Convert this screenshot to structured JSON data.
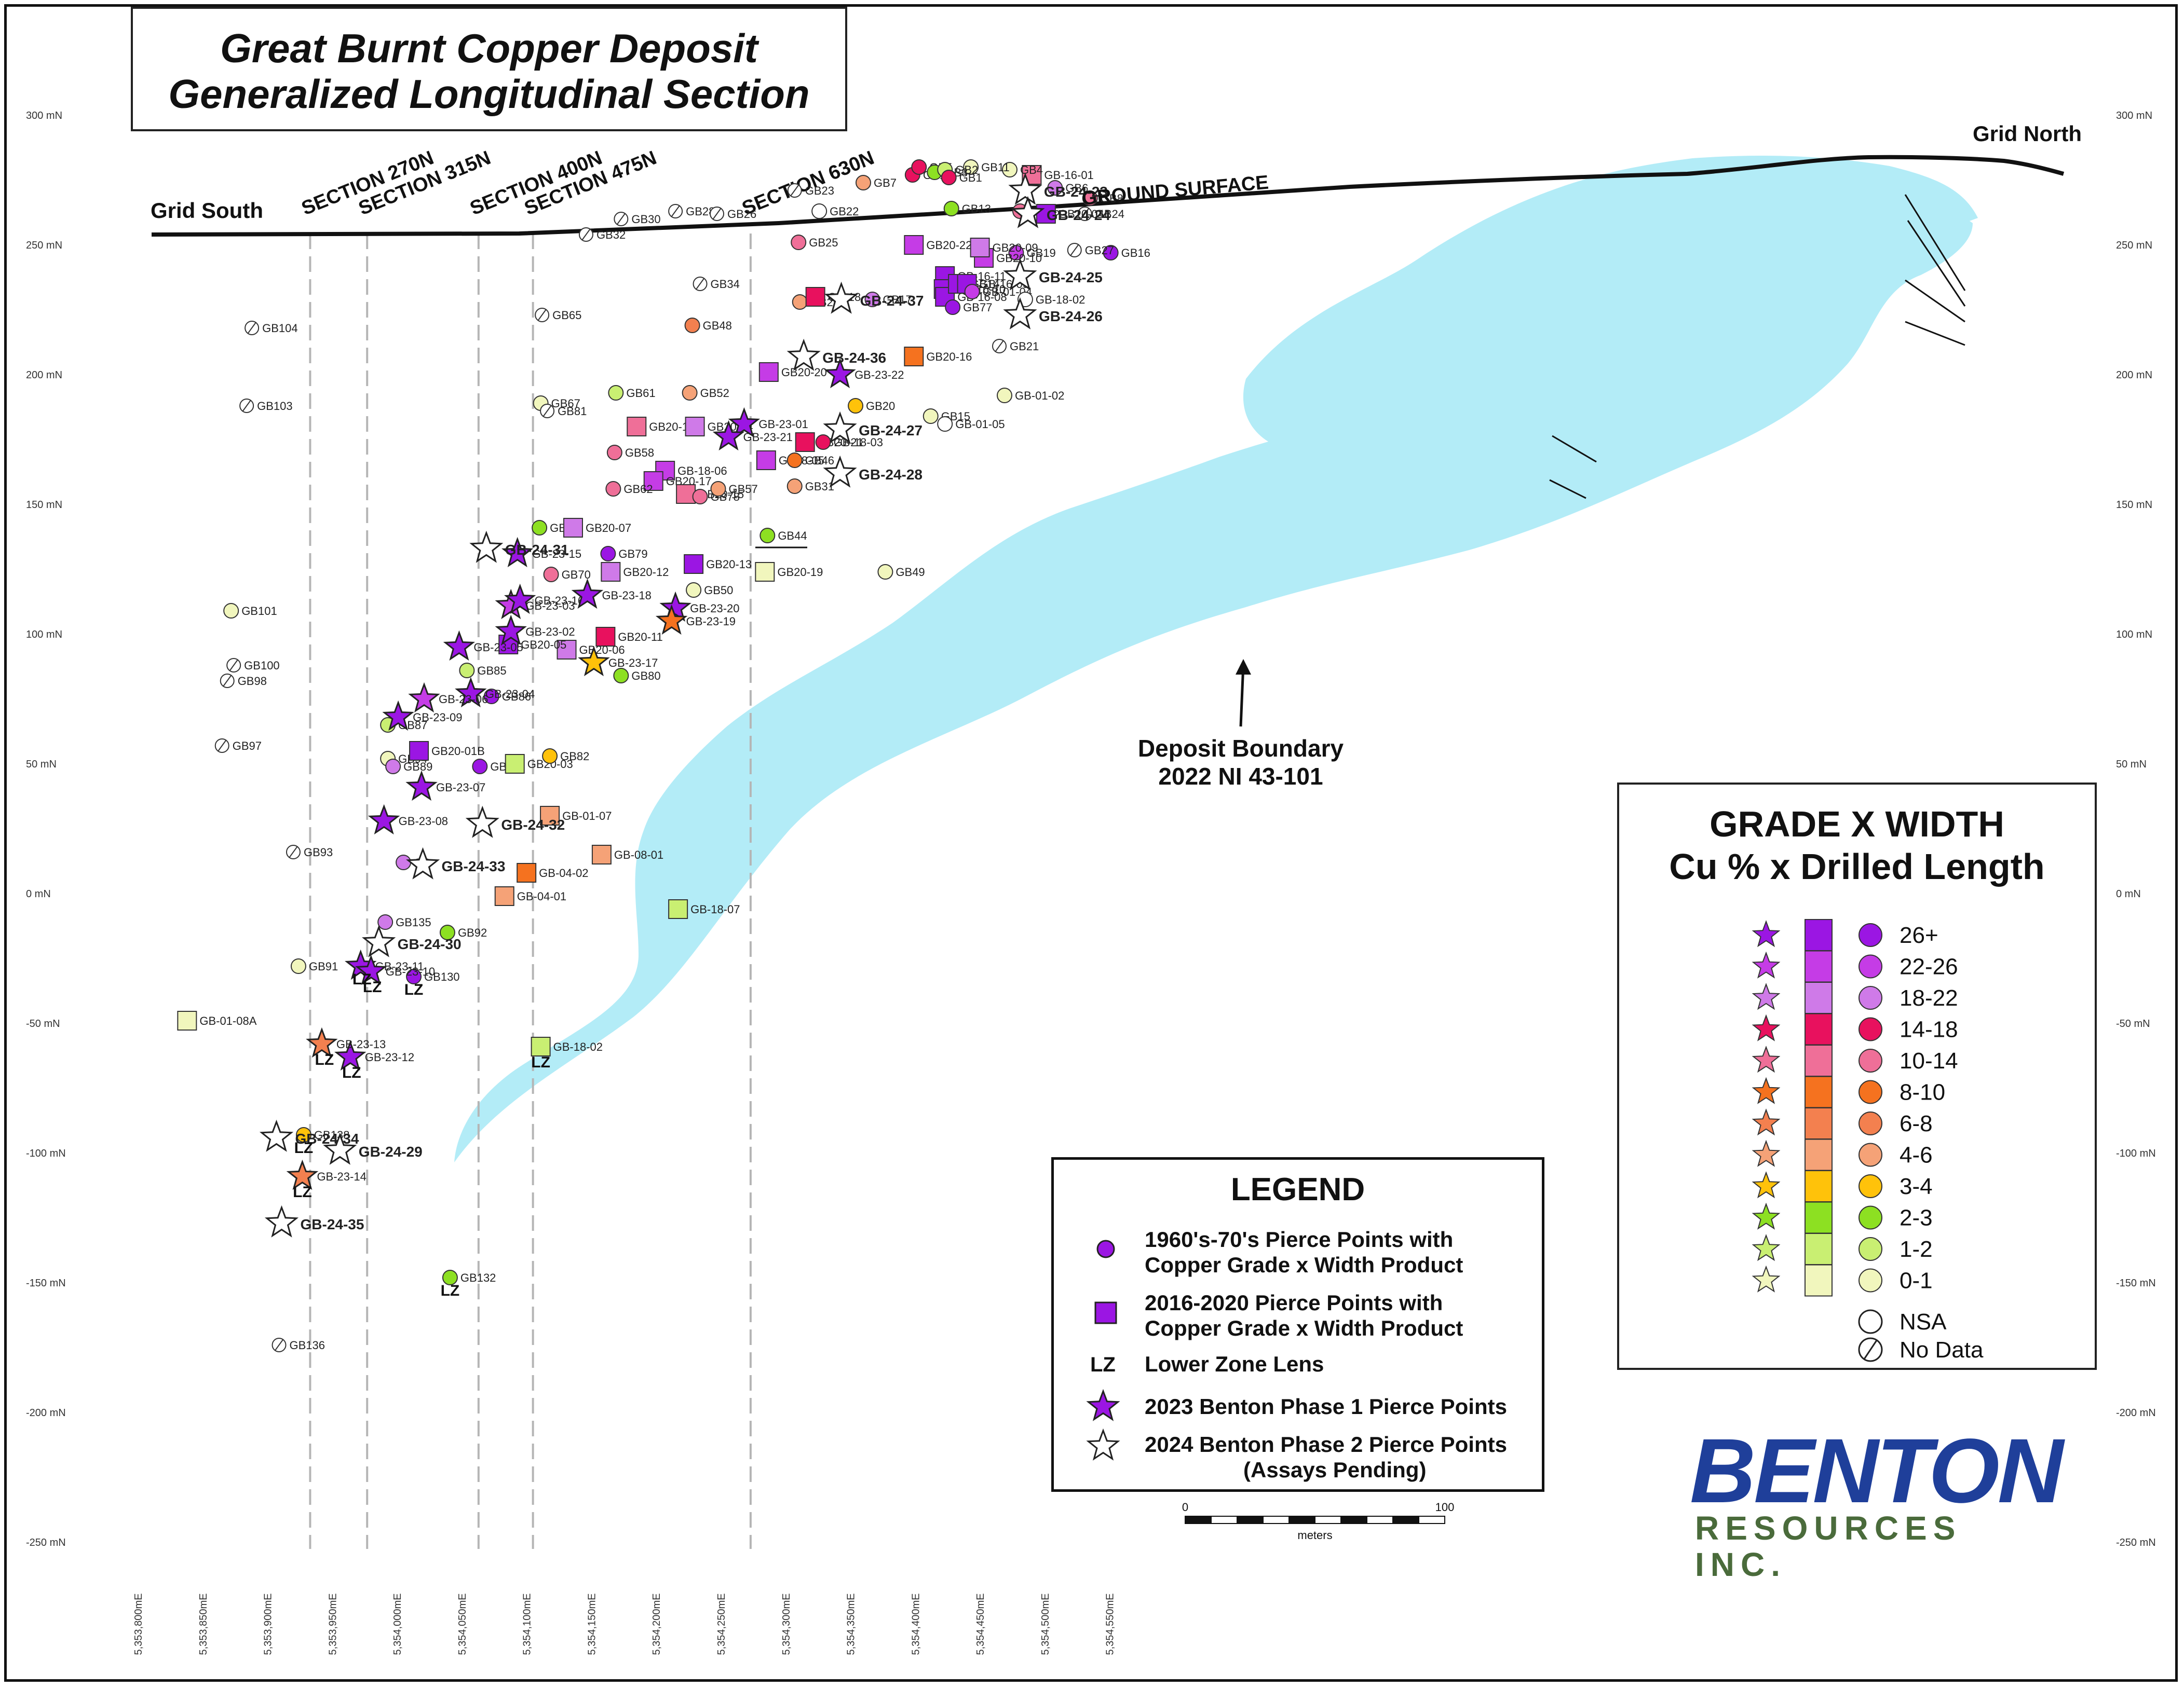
{
  "title": {
    "line1": "Great Burnt Copper Deposit",
    "line2": "Generalized Longitudinal Section"
  },
  "labels": {
    "grid_south": "Grid South",
    "grid_north": "Grid North",
    "ground_surface": "GROUND SURFACE",
    "deposit_boundary_1": "Deposit Boundary",
    "deposit_boundary_2": "2022 NI 43-101"
  },
  "sections": [
    {
      "label": "SECTION 270N",
      "easting": 5353930
    },
    {
      "label": "SECTION 315N",
      "easting": 5353974
    },
    {
      "label": "SECTION 400N",
      "easting": 5354060
    },
    {
      "label": "SECTION 475N",
      "easting": 5354102
    },
    {
      "label": "SECTION 630N",
      "easting": 5354270
    }
  ],
  "axes": {
    "y_ticks": [
      {
        "v": 300,
        "label": "300 mN"
      },
      {
        "v": 250,
        "label": "250 mN"
      },
      {
        "v": 200,
        "label": "200 mN"
      },
      {
        "v": 150,
        "label": "150 mN"
      },
      {
        "v": 100,
        "label": "100 mN"
      },
      {
        "v": 50,
        "label": "50 mN"
      },
      {
        "v": 0,
        "label": "0 mN"
      },
      {
        "v": -50,
        "label": "-50 mN"
      },
      {
        "v": -100,
        "label": "-100 mN"
      },
      {
        "v": -150,
        "label": "-150 mN"
      },
      {
        "v": -200,
        "label": "-200 mN"
      },
      {
        "v": -250,
        "label": "-250 mN"
      }
    ],
    "x_ticks": [
      {
        "v": 5353800,
        "label": "5,353,800mE"
      },
      {
        "v": 5353850,
        "label": "5,353,850mE"
      },
      {
        "v": 5353900,
        "label": "5,353,900mE"
      },
      {
        "v": 5353950,
        "label": "5,353,950mE"
      },
      {
        "v": 5354000,
        "label": "5,354,000mE"
      },
      {
        "v": 5354050,
        "label": "5,354,050mE"
      },
      {
        "v": 5354100,
        "label": "5,354,100mE"
      },
      {
        "v": 5354150,
        "label": "5,354,150mE"
      },
      {
        "v": 5354200,
        "label": "5,354,200mE"
      },
      {
        "v": 5354250,
        "label": "5,354,250mE"
      },
      {
        "v": 5354300,
        "label": "5,354,300mE"
      },
      {
        "v": 5354350,
        "label": "5,354,350mE"
      },
      {
        "v": 5354400,
        "label": "5,354,400mE"
      },
      {
        "v": 5354450,
        "label": "5,354,450mE"
      },
      {
        "v": 5354500,
        "label": "5,354,500mE"
      },
      {
        "v": 5354550,
        "label": "5,354,550mE"
      }
    ]
  },
  "colors": {
    "deposit_fill": "#b3ecf7",
    "nsa": "#ffffff",
    "grades": [
      "#9b16e3",
      "#c53ce6",
      "#cf7ae8",
      "#e8115e",
      "#ef6f98",
      "#f5721f",
      "#f3804f",
      "#f5a277",
      "#ffc20a",
      "#8de022",
      "#c9ef72",
      "#f1f6bd"
    ]
  },
  "scale_bar": {
    "min_label": "0",
    "max_label": "100",
    "unit": "meters"
  },
  "legend": {
    "title": "LEGEND",
    "items": [
      {
        "line1": "1960's-70's Pierce Points with",
        "line2": "Copper Grade x Width Product"
      },
      {
        "line1": "2016-2020 Pierce Points with",
        "line2": "Copper Grade x Width Product"
      },
      {
        "symbol": "LZ",
        "line1": "Lower Zone Lens"
      },
      {
        "line1": "2023 Benton Phase 1 Pierce Points"
      },
      {
        "line1": "2024 Benton Phase 2 Pierce Points",
        "line2": "(Assays Pending)"
      }
    ]
  },
  "grade_width": {
    "title1": "GRADE X WIDTH",
    "title2": "Cu % x Drilled Length",
    "ranges": [
      "26+",
      "22-26",
      "18-22",
      "14-18",
      "10-14",
      "8-10",
      "6-8",
      "4-6",
      "3-4",
      "2-3",
      "1-2",
      "0-1"
    ],
    "nsa": "NSA",
    "no_data": "No Data"
  },
  "logo": {
    "main": "BENTON",
    "sub": "RESOURCES INC."
  },
  "points": [
    {
      "t": "c",
      "c": 0,
      "x": 5354548,
      "y": 247,
      "l": "GB16"
    },
    {
      "t": "c",
      "c": 2,
      "x": 5354505,
      "y": 272,
      "l": "GB6"
    },
    {
      "t": "c",
      "c": 4,
      "x": 5354532,
      "y": 268,
      "l": "GB8"
    },
    {
      "t": "nd",
      "x": 5354528,
      "y": 262,
      "l": "GB24"
    },
    {
      "t": "nd",
      "x": 5354520,
      "y": 248,
      "l": "GB27"
    },
    {
      "t": "c",
      "c": 1,
      "x": 5354475,
      "y": 247,
      "l": "GB19"
    },
    {
      "t": "c",
      "c": 4,
      "x": 5354478,
      "y": 263,
      "l": "GB15"
    },
    {
      "t": "sq",
      "c": 0,
      "x": 5354498,
      "y": 262,
      "l": "GB20-04"
    },
    {
      "t": "sq",
      "c": 4,
      "x": 5354487,
      "y": 277,
      "l": "GB-16-01"
    },
    {
      "t": "c",
      "c": 11,
      "x": 5354470,
      "y": 279,
      "l": "GB4"
    },
    {
      "t": "nd",
      "x": 5354462,
      "y": 211,
      "l": "GB21"
    },
    {
      "t": "c",
      "c": 11,
      "x": 5354466,
      "y": 192,
      "l": "GB-01-02"
    },
    {
      "t": "c",
      "c": 11,
      "x": 5354440,
      "y": 280,
      "l": "GB11"
    },
    {
      "t": "c",
      "c": 3,
      "x": 5354395,
      "y": 277,
      "l": "GB12"
    },
    {
      "t": "c",
      "c": 3,
      "x": 5354400,
      "y": 280,
      "l": "GB5"
    },
    {
      "t": "c",
      "c": 9,
      "x": 5354412,
      "y": 278,
      "l": "GB3"
    },
    {
      "t": "c",
      "c": 10,
      "x": 5354420,
      "y": 279,
      "l": "GB2"
    },
    {
      "t": "c",
      "c": 3,
      "x": 5354423,
      "y": 276,
      "l": "GB1"
    },
    {
      "t": "c",
      "c": 9,
      "x": 5354425,
      "y": 264,
      "l": "GB13"
    },
    {
      "t": "c",
      "c": 7,
      "x": 5354357,
      "y": 274,
      "l": "GB7"
    },
    {
      "t": "sq",
      "c": 1,
      "x": 5354396,
      "y": 250,
      "l": "GB20-22"
    },
    {
      "t": "sq",
      "c": 1,
      "x": 5354450,
      "y": 245,
      "l": "GB20-10"
    },
    {
      "t": "sq",
      "c": 2,
      "x": 5354447,
      "y": 249,
      "l": "GB20-09"
    },
    {
      "t": "sq",
      "c": 0,
      "x": 5354420,
      "y": 238,
      "l": "GB-16-11"
    },
    {
      "t": "sq",
      "c": 0,
      "x": 5354419,
      "y": 233,
      "l": "GB-16-10"
    },
    {
      "t": "sq",
      "c": 0,
      "x": 5354420,
      "y": 230,
      "l": "GB-16-08"
    },
    {
      "t": "sq",
      "c": 0,
      "x": 5354430,
      "y": 235,
      "l": "GB14"
    },
    {
      "t": "sq",
      "c": 0,
      "x": 5354437,
      "y": 235,
      "l": "GB-16-09"
    },
    {
      "t": "c",
      "c": 1,
      "x": 5354441,
      "y": 232,
      "l": "GB-01-04"
    },
    {
      "t": "c",
      "c": 0,
      "x": 5354426,
      "y": 226,
      "l": "GB77"
    },
    {
      "t": "nsa",
      "x": 5354482,
      "y": 229,
      "l": "GB-18-02"
    },
    {
      "t": "nd",
      "x": 5354304,
      "y": 271,
      "l": "GB23"
    },
    {
      "t": "nsa",
      "x": 5354323,
      "y": 263,
      "l": "GB22"
    },
    {
      "t": "c",
      "c": 4,
      "x": 5354307,
      "y": 251,
      "l": "GB25"
    },
    {
      "t": "c",
      "c": 7,
      "x": 5354308,
      "y": 228,
      "l": "GB29"
    },
    {
      "t": "sq",
      "c": 3,
      "x": 5354320,
      "y": 230,
      "l": "GB-18"
    },
    {
      "t": "c",
      "c": 2,
      "x": 5354364,
      "y": 229,
      "l": "GB17"
    },
    {
      "t": "sq",
      "c": 5,
      "x": 5354396,
      "y": 207,
      "l": "GB20-16"
    },
    {
      "t": "c",
      "c": 8,
      "x": 5354351,
      "y": 188,
      "l": "GB20"
    },
    {
      "t": "c",
      "c": 11,
      "x": 5354409,
      "y": 184,
      "l": "GB15"
    },
    {
      "t": "nsa",
      "x": 5354420,
      "y": 181,
      "l": "GB-01-05"
    },
    {
      "t": "c",
      "c": 11,
      "x": 5354374,
      "y": 124,
      "l": "GB49"
    },
    {
      "t": "sq",
      "c": 1,
      "x": 5354284,
      "y": 201,
      "l": "GB20-20"
    },
    {
      "t": "sq",
      "c": 3,
      "x": 5354312,
      "y": 174,
      "l": "GB20-21"
    },
    {
      "t": "c",
      "c": 3,
      "x": 5354326,
      "y": 174,
      "l": "GB-18-03"
    },
    {
      "t": "sq",
      "c": 1,
      "x": 5354282,
      "y": 167,
      "l": "GB18-05"
    },
    {
      "t": "c",
      "c": 5,
      "x": 5354304,
      "y": 167,
      "l": "GB46"
    },
    {
      "t": "c",
      "c": 7,
      "x": 5354304,
      "y": 157,
      "l": "GB31"
    },
    {
      "t": "c",
      "c": 9,
      "x": 5354283,
      "y": 138,
      "l": "GB44"
    },
    {
      "t": "sq",
      "c": 11,
      "x": 5354281,
      "y": 124,
      "l": "GB20-19"
    },
    {
      "t": "nd",
      "x": 5354143,
      "y": 254,
      "l": "GB32"
    },
    {
      "t": "nd",
      "x": 5354170,
      "y": 260,
      "l": "GB30"
    },
    {
      "t": "nd",
      "x": 5354212,
      "y": 263,
      "l": "GB28"
    },
    {
      "t": "nd",
      "x": 5354244,
      "y": 262,
      "l": "GB26"
    },
    {
      "t": "nd",
      "x": 5354231,
      "y": 235,
      "l": "GB34"
    },
    {
      "t": "c",
      "c": 6,
      "x": 5354225,
      "y": 219,
      "l": "GB48"
    },
    {
      "t": "nd",
      "x": 5354109,
      "y": 223,
      "l": "GB65"
    },
    {
      "t": "c",
      "c": 11,
      "x": 5354108,
      "y": 189,
      "l": "GB67"
    },
    {
      "t": "nd",
      "x": 5354113,
      "y": 186,
      "l": "GB81"
    },
    {
      "t": "c",
      "c": 10,
      "x": 5354166,
      "y": 193,
      "l": "GB61"
    },
    {
      "t": "c",
      "c": 7,
      "x": 5354223,
      "y": 193,
      "l": "GB52"
    },
    {
      "t": "sq",
      "c": 4,
      "x": 5354182,
      "y": 180,
      "l": "GB20-18"
    },
    {
      "t": "sq",
      "c": 2,
      "x": 5354227,
      "y": 180,
      "l": "GB20-14"
    },
    {
      "t": "c",
      "c": 4,
      "x": 5354165,
      "y": 170,
      "l": "GB58"
    },
    {
      "t": "sq",
      "c": 1,
      "x": 5354204,
      "y": 163,
      "l": "GB-18-06"
    },
    {
      "t": "sq",
      "c": 1,
      "x": 5354195,
      "y": 159,
      "l": "GB20-17"
    },
    {
      "t": "sq",
      "c": 4,
      "x": 5354220,
      "y": 154,
      "l": "GB20-15"
    },
    {
      "t": "c",
      "c": 4,
      "x": 5354164,
      "y": 156,
      "l": "GB62"
    },
    {
      "t": "c",
      "c": 4,
      "x": 5354231,
      "y": 153,
      "l": "GB78"
    },
    {
      "t": "c",
      "c": 7,
      "x": 5354245,
      "y": 156,
      "l": "GB57"
    },
    {
      "t": "c",
      "c": 9,
      "x": 5354107,
      "y": 141,
      "l": "GB83"
    },
    {
      "t": "sq",
      "c": 2,
      "x": 5354133,
      "y": 141,
      "l": "GB20-07"
    },
    {
      "t": "c",
      "c": 0,
      "x": 5354160,
      "y": 131,
      "l": "GB79"
    },
    {
      "t": "sq",
      "c": 2,
      "x": 5354162,
      "y": 124,
      "l": "GB20-12"
    },
    {
      "t": "c",
      "c": 4,
      "x": 5354116,
      "y": 123,
      "l": "GB70"
    },
    {
      "t": "sq",
      "c": 0,
      "x": 5354226,
      "y": 127,
      "l": "GB20-13"
    },
    {
      "t": "c",
      "c": 11,
      "x": 5354226,
      "y": 117,
      "l": "GB50"
    },
    {
      "t": "sq",
      "c": 3,
      "x": 5354158,
      "y": 99,
      "l": "GB20-11"
    },
    {
      "t": "sq",
      "c": 2,
      "x": 5354128,
      "y": 94,
      "l": "GB20-06"
    },
    {
      "t": "c",
      "c": 9,
      "x": 5354170,
      "y": 84,
      "l": "GB80"
    },
    {
      "t": "sq",
      "c": 0,
      "x": 5354083,
      "y": 96,
      "l": "GB20-05"
    },
    {
      "t": "c",
      "c": 10,
      "x": 5354051,
      "y": 86,
      "l": "GB85"
    },
    {
      "t": "c",
      "c": 0,
      "x": 5354070,
      "y": 76,
      "l": "GB86"
    },
    {
      "t": "c",
      "c": 10,
      "x": 5353990,
      "y": 65,
      "l": "GB87"
    },
    {
      "t": "c",
      "c": 11,
      "x": 5353990,
      "y": 52,
      "l": "GB94"
    },
    {
      "t": "c",
      "c": 2,
      "x": 5353994,
      "y": 49,
      "l": "GB89"
    },
    {
      "t": "sq",
      "c": 0,
      "x": 5354014,
      "y": 55,
      "l": "GB20-01B"
    },
    {
      "t": "c",
      "c": 0,
      "x": 5354061,
      "y": 49,
      "l": "GB88"
    },
    {
      "t": "sq",
      "c": 10,
      "x": 5354088,
      "y": 50,
      "l": "GB20-03"
    },
    {
      "t": "c",
      "c": 8,
      "x": 5354115,
      "y": 53,
      "l": "GB82"
    },
    {
      "t": "sq",
      "c": 7,
      "x": 5354115,
      "y": 30,
      "l": "GB-01-07"
    },
    {
      "t": "sq",
      "c": 7,
      "x": 5354155,
      "y": 15,
      "l": "GB-08-01"
    },
    {
      "t": "sq",
      "c": 5,
      "x": 5354097,
      "y": 8,
      "l": "GB-04-02"
    },
    {
      "t": "sq",
      "c": 7,
      "x": 5354080,
      "y": -1,
      "l": "GB-04-01"
    },
    {
      "t": "sq",
      "c": 10,
      "x": 5354214,
      "y": -6,
      "l": "GB-18-07"
    },
    {
      "t": "c",
      "c": 2,
      "x": 5354002,
      "y": 12,
      "l": "GB"
    },
    {
      "t": "c",
      "c": 2,
      "x": 5353988,
      "y": -11,
      "l": "GB135"
    },
    {
      "t": "c",
      "c": 9,
      "x": 5354036,
      "y": -15,
      "l": "GB92"
    },
    {
      "t": "c",
      "c": 0,
      "x": 5354010,
      "y": -32,
      "l": "GB130"
    },
    {
      "t": "c",
      "c": 11,
      "x": 5353921,
      "y": -28,
      "l": "GB91"
    },
    {
      "t": "nd",
      "x": 5353917,
      "y": 16,
      "l": "GB93"
    },
    {
      "t": "nd",
      "x": 5353862,
      "y": 57,
      "l": "GB97"
    },
    {
      "t": "nd",
      "x": 5353866,
      "y": 82,
      "l": "GB98"
    },
    {
      "t": "nd",
      "x": 5353871,
      "y": 88,
      "l": "GB100"
    },
    {
      "t": "c",
      "c": 11,
      "x": 5353869,
      "y": 109,
      "l": "GB101"
    },
    {
      "t": "nd",
      "x": 5353881,
      "y": 188,
      "l": "GB103"
    },
    {
      "t": "nd",
      "x": 5353885,
      "y": 218,
      "l": "GB104"
    },
    {
      "t": "sq",
      "c": 11,
      "x": 5353835,
      "y": -49,
      "l": "GB-01-08A"
    },
    {
      "t": "sq",
      "c": 10,
      "x": 5354108,
      "y": -59,
      "l": "GB-18-02"
    },
    {
      "t": "c",
      "c": 8,
      "x": 5353925,
      "y": -93,
      "l": "GB138"
    },
    {
      "t": "c",
      "c": 9,
      "x": 5354038,
      "y": -148,
      "l": "GB132"
    },
    {
      "t": "nd",
      "x": 5353906,
      "y": -174,
      "l": "GB136"
    },
    {
      "t": "s",
      "c": 0,
      "x": 5354090,
      "y": 131,
      "l": "GB-23-15"
    },
    {
      "t": "s",
      "c": 1,
      "x": 5354085,
      "y": 111,
      "l": "GB-23-03"
    },
    {
      "t": "s",
      "c": 0,
      "x": 5354092,
      "y": 113,
      "l": "GB-23-16"
    },
    {
      "t": "s",
      "c": 0,
      "x": 5354085,
      "y": 101,
      "l": "GB-23-02"
    },
    {
      "t": "s",
      "c": 0,
      "x": 5354045,
      "y": 95,
      "l": "GB-23-05"
    },
    {
      "t": "s",
      "c": 0,
      "x": 5354054,
      "y": 77,
      "l": "GB-23-04"
    },
    {
      "t": "s",
      "c": 1,
      "x": 5354018,
      "y": 75,
      "l": "GB-23-06"
    },
    {
      "t": "s",
      "c": 0,
      "x": 5353998,
      "y": 68,
      "l": "GB-23-09"
    },
    {
      "t": "s",
      "c": 0,
      "x": 5354016,
      "y": 41,
      "l": "GB-23-07"
    },
    {
      "t": "s",
      "c": 0,
      "x": 5353987,
      "y": 28,
      "l": "GB-23-08"
    },
    {
      "t": "s",
      "c": 0,
      "x": 5354144,
      "y": 115,
      "l": "GB-23-18"
    },
    {
      "t": "s",
      "c": 8,
      "x": 5354149,
      "y": 89,
      "l": "GB-23-17"
    },
    {
      "t": "s",
      "c": 0,
      "x": 5354212,
      "y": 110,
      "l": "GB-23-20"
    },
    {
      "t": "s",
      "c": 5,
      "x": 5354209,
      "y": 105,
      "l": "GB-23-19"
    },
    {
      "t": "s",
      "c": 0,
      "x": 5354265,
      "y": 181,
      "l": "GB-23-01"
    },
    {
      "t": "s",
      "c": 0,
      "x": 5354253,
      "y": 176,
      "l": "GB-23-21"
    },
    {
      "t": "s",
      "c": 0,
      "x": 5354339,
      "y": 200,
      "l": "GB-23-22"
    },
    {
      "t": "s",
      "c": 0,
      "x": 5353969,
      "y": -28,
      "l": "GB-23-11"
    },
    {
      "t": "s",
      "c": 0,
      "x": 5353977,
      "y": -30,
      "l": "GB-23-10"
    },
    {
      "t": "s",
      "c": 0,
      "x": 5353961,
      "y": -63,
      "l": "GB-23-12"
    },
    {
      "t": "s",
      "c": 6,
      "x": 5353939,
      "y": -58,
      "l": "GB-23-13"
    },
    {
      "t": "s",
      "c": 6,
      "x": 5353924,
      "y": -109,
      "l": "GB-23-14"
    },
    {
      "t": "os",
      "x": 5354066,
      "y": 133,
      "l": "GB-24-31"
    },
    {
      "t": "os",
      "x": 5354063,
      "y": 27,
      "l": "GB-24-32"
    },
    {
      "t": "os",
      "x": 5354017,
      "y": 11,
      "l": "GB-24-33"
    },
    {
      "t": "os",
      "x": 5353983,
      "y": -19,
      "l": "GB-24-30"
    },
    {
      "t": "os",
      "x": 5353904,
      "y": -94,
      "l": "GB-24-34"
    },
    {
      "t": "os",
      "x": 5353908,
      "y": -127,
      "l": "GB-24-35"
    },
    {
      "t": "os",
      "x": 5353953,
      "y": -99,
      "l": "GB-24-29"
    },
    {
      "t": "os",
      "x": 5354311,
      "y": 207,
      "l": "GB-24-36"
    },
    {
      "t": "os",
      "x": 5354340,
      "y": 229,
      "l": "GB-24-37"
    },
    {
      "t": "os",
      "x": 5354339,
      "y": 179,
      "l": "GB-24-27"
    },
    {
      "t": "os",
      "x": 5354339,
      "y": 162,
      "l": "GB-24-28"
    },
    {
      "t": "os",
      "x": 5354482,
      "y": 271,
      "l": "GB-24-23"
    },
    {
      "t": "os",
      "x": 5354484,
      "y": 262,
      "l": "GB-24-24"
    },
    {
      "t": "os",
      "x": 5354478,
      "y": 238,
      "l": "GB-24-25"
    },
    {
      "t": "os",
      "x": 5354478,
      "y": 223,
      "l": "GB-24-26"
    }
  ],
  "lz_labels": [
    {
      "x": 5353970,
      "y": -35
    },
    {
      "x": 5353978,
      "y": -38
    },
    {
      "x": 5353962,
      "y": -71
    },
    {
      "x": 5353941,
      "y": -66
    },
    {
      "x": 5354010,
      "y": -39
    },
    {
      "x": 5354108,
      "y": -67
    },
    {
      "x": 5353925,
      "y": -100
    },
    {
      "x": 5353924,
      "y": -117
    },
    {
      "x": 5354038,
      "y": -155
    }
  ]
}
